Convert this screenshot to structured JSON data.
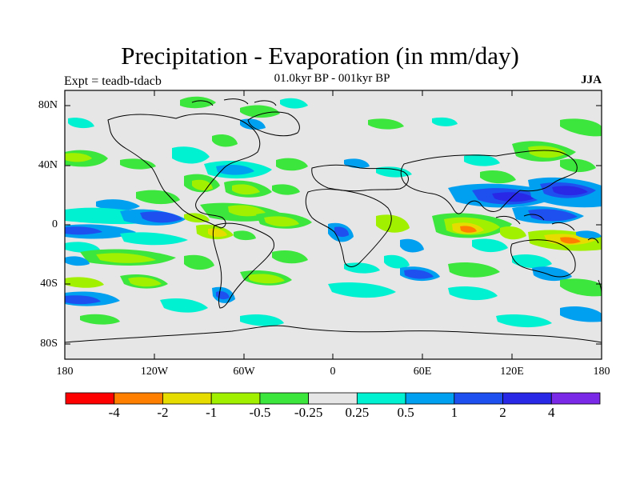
{
  "title": "Precipitation - Evaporation (in mm/day)",
  "subtitle": "01.0kyr BP - 001kyr BP",
  "experiment": "Expt = teadb-tdacb",
  "season": "JJA",
  "lat_labels": [
    "80N",
    "40N",
    "0",
    "40S",
    "80S"
  ],
  "lon_labels": [
    "180",
    "120W",
    "60W",
    "0",
    "60E",
    "120E",
    "180"
  ],
  "colorbar": {
    "labels": [
      "-4",
      "-2",
      "-1",
      "-0.5",
      "-0.25",
      "0.25",
      "0.5",
      "1",
      "2",
      "4"
    ],
    "colors": [
      "#ff0000",
      "#ff8000",
      "#e6dc00",
      "#a0f000",
      "#3ce63c",
      "#e6e6e6",
      "#00f0d2",
      "#00a0f0",
      "#1e50f0",
      "#2828e6",
      "#7a2ae6"
    ]
  },
  "colors": {
    "background": "#e6e6e6",
    "coast": "#000000"
  }
}
